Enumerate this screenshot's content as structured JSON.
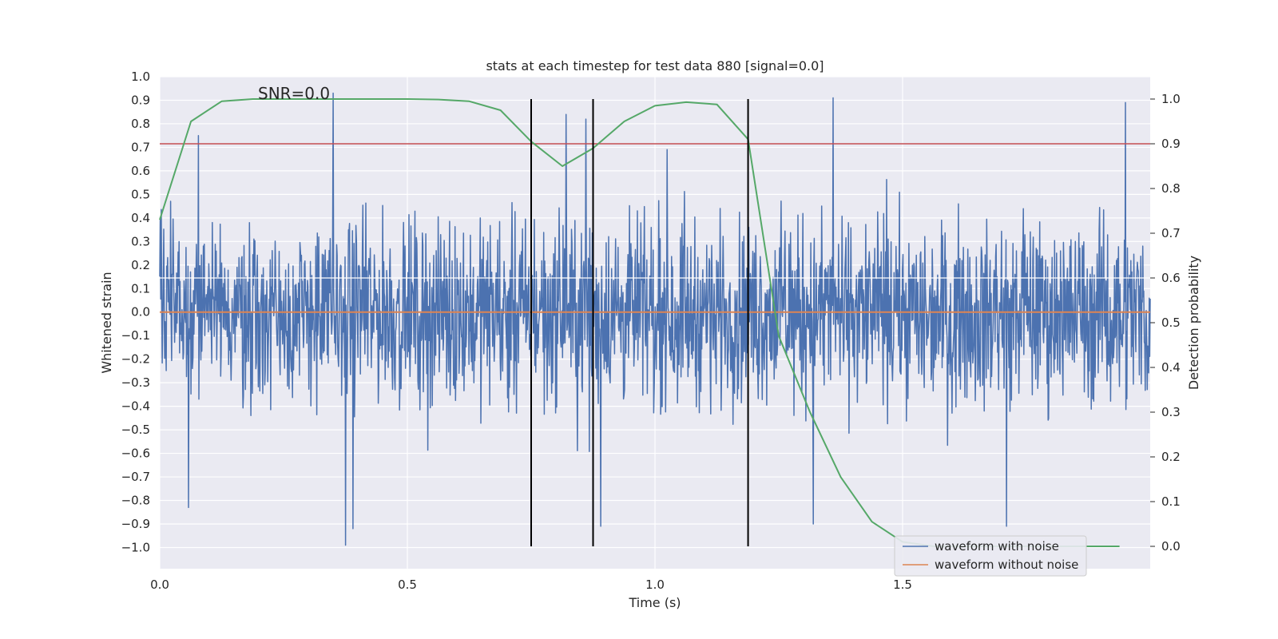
{
  "chart_data": {
    "type": "line",
    "title": "stats at each timestep for test data 880 [signal=0.0]",
    "xlabel": "Time (s)",
    "ylabel_left": "Whitened strain",
    "ylabel_right": "Detection probability",
    "annotation": "SNR=0.0",
    "xlim": [
      0.0,
      2.0
    ],
    "ylim_left": [
      -1.09,
      1.0
    ],
    "ylim_right": [
      -0.05,
      1.05
    ],
    "xticks": [
      0.0,
      0.5,
      1.0,
      1.5
    ],
    "xtick_labels": [
      "0.0",
      "0.5",
      "1.0",
      "1.5"
    ],
    "yticks_left": [
      1.0,
      0.9,
      0.8,
      0.7,
      0.6,
      0.5,
      0.4,
      0.3,
      0.2,
      0.1,
      0.0,
      -0.1,
      -0.2,
      -0.3,
      -0.4,
      -0.5,
      -0.6,
      -0.7,
      -0.8,
      -0.9,
      -1.0
    ],
    "ytick_labels_left": [
      "1.0",
      "0.9",
      "0.8",
      "0.7",
      "0.6",
      "0.5",
      "0.4",
      "0.3",
      "0.2",
      "0.1",
      "0.0",
      "−0.1",
      "−0.2",
      "−0.3",
      "−0.4",
      "−0.5",
      "−0.6",
      "−0.7",
      "−0.8",
      "−0.9",
      "−1.0"
    ],
    "yticks_right": [
      1.0,
      0.9,
      0.8,
      0.7,
      0.6,
      0.5,
      0.4,
      0.3,
      0.2,
      0.1,
      0.0
    ],
    "ytick_labels_right": [
      "1.0",
      "0.9",
      "0.8",
      "0.7",
      "0.6",
      "0.5",
      "0.4",
      "0.3",
      "0.2",
      "0.1",
      "0.0"
    ],
    "grid": true,
    "legend_placement": "lower-right",
    "colors": {
      "noise": "#4c72b0",
      "clean": "#dd8452",
      "probability": "#55a868",
      "threshold": "#c44e52",
      "marker": "#000000",
      "plot_bg": "#eaeaf2",
      "grid": "#ffffff"
    },
    "series": [
      {
        "name": "waveform with noise",
        "axis": "left",
        "noise_amplitude": 0.35,
        "peaks": [
          {
            "x": 0.058,
            "y": -0.83
          },
          {
            "x": 0.078,
            "y": 0.75
          },
          {
            "x": 0.35,
            "y": 0.93
          },
          {
            "x": 0.375,
            "y": -0.99
          },
          {
            "x": 0.39,
            "y": -0.92
          },
          {
            "x": 0.82,
            "y": 0.84
          },
          {
            "x": 0.86,
            "y": 0.82
          },
          {
            "x": 0.89,
            "y": -0.91
          },
          {
            "x": 1.32,
            "y": -0.9
          },
          {
            "x": 1.36,
            "y": 0.91
          },
          {
            "x": 1.71,
            "y": -0.91
          },
          {
            "x": 1.95,
            "y": 0.89
          }
        ]
      },
      {
        "name": "waveform without noise",
        "axis": "left",
        "x": [
          0.0,
          2.0
        ],
        "y": [
          0.0,
          0.0
        ]
      },
      {
        "name": "detection probability",
        "axis": "right",
        "x": [
          0.0,
          0.063,
          0.125,
          0.188,
          0.25,
          0.313,
          0.375,
          0.438,
          0.5,
          0.563,
          0.625,
          0.688,
          0.75,
          0.813,
          0.875,
          0.938,
          1.0,
          1.063,
          1.125,
          1.188,
          1.25,
          1.313,
          1.375,
          1.438,
          1.5,
          1.563,
          1.625,
          1.688,
          1.75,
          1.813,
          1.875,
          1.938
        ],
        "y": [
          0.73,
          0.95,
          0.995,
          1.0,
          1.0,
          1.0,
          1.0,
          1.0,
          1.0,
          0.999,
          0.995,
          0.975,
          0.905,
          0.85,
          0.89,
          0.95,
          0.985,
          0.993,
          0.988,
          0.91,
          0.47,
          0.3,
          0.155,
          0.055,
          0.01,
          0.0,
          0.0,
          0.0,
          0.0,
          0.0,
          0.0,
          0.0
        ]
      }
    ],
    "threshold": {
      "axis": "right",
      "y": 0.9
    },
    "vlines": [
      0.75,
      0.875,
      1.188
    ],
    "vline_range_right": [
      0.0,
      1.0
    ]
  }
}
